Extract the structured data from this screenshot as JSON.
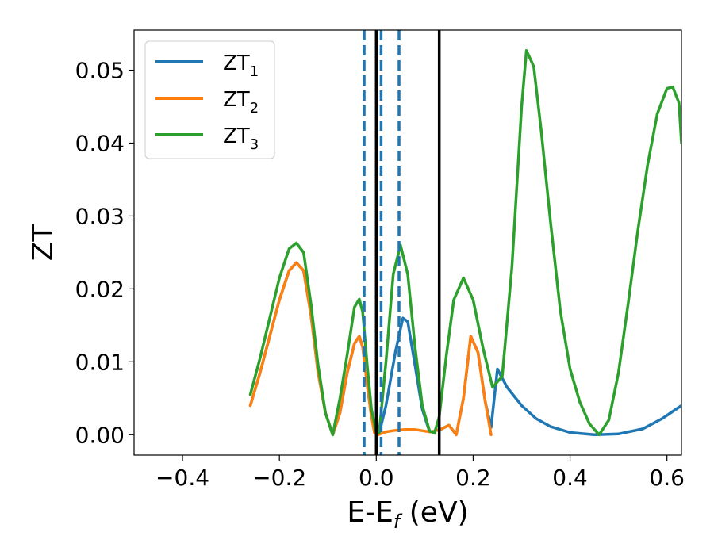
{
  "chart_data": {
    "type": "line",
    "xlabel_main": "E-E",
    "xlabel_sub": "f",
    "xlabel_unit": " (eV)",
    "ylabel": "ZT",
    "xlim": [
      -0.5,
      0.63
    ],
    "ylim": [
      -0.0028,
      0.0555
    ],
    "x_ticks": [
      -0.4,
      -0.2,
      0.0,
      0.2,
      0.4,
      0.6
    ],
    "x_tick_labels": [
      "−0.4",
      "−0.2",
      "0.0",
      "0.2",
      "0.4",
      "0.6"
    ],
    "y_ticks": [
      0.0,
      0.01,
      0.02,
      0.03,
      0.04,
      0.05
    ],
    "y_tick_labels": [
      "0.00",
      "0.01",
      "0.02",
      "0.03",
      "0.04",
      "0.05"
    ],
    "grid": false,
    "legend_position": "top-left",
    "vlines_solid": [
      0.0,
      0.13
    ],
    "vlines_dashed": [
      -0.025,
      0.01,
      0.047
    ],
    "vline_dashed_color": "#1f77b4",
    "vline_solid_color": "#000000",
    "series": [
      {
        "name": "ZT",
        "sub": "1",
        "color": "#1f77b4",
        "x": [
          -0.26,
          -0.24,
          -0.22,
          -0.2,
          -0.18,
          -0.165,
          -0.15,
          -0.135,
          -0.12,
          -0.105,
          -0.09,
          -0.075,
          -0.06,
          -0.045,
          -0.035,
          -0.028,
          -0.018,
          -0.01,
          0.0,
          0.006,
          0.02,
          0.04,
          0.055,
          0.065,
          0.08,
          0.095,
          0.11,
          0.12,
          0.135,
          0.15,
          0.165,
          0.18,
          0.195,
          0.21,
          0.225,
          0.237,
          0.25,
          0.27,
          0.3,
          0.33,
          0.36,
          0.4,
          0.45,
          0.5,
          0.55,
          0.59,
          0.63
        ],
        "y": [
          0.004,
          0.0085,
          0.0135,
          0.0185,
          0.0225,
          0.0236,
          0.0225,
          0.0165,
          0.0085,
          0.003,
          0.0,
          0.003,
          0.0085,
          0.0125,
          0.0135,
          0.012,
          0.0065,
          0.0025,
          0.0003,
          0.0002,
          0.004,
          0.0115,
          0.016,
          0.0155,
          0.0095,
          0.0035,
          0.0004,
          0.0005,
          0.0008,
          0.0013,
          0.0,
          0.005,
          0.0135,
          0.0113,
          0.0045,
          0.001,
          0.009,
          0.0065,
          0.004,
          0.0022,
          0.0011,
          0.0003,
          0.0,
          0.0001,
          0.0008,
          0.0022,
          0.004
        ]
      },
      {
        "name": "ZT",
        "sub": "2",
        "color": "#ff7f0e",
        "x": [
          -0.26,
          -0.24,
          -0.22,
          -0.2,
          -0.18,
          -0.165,
          -0.15,
          -0.135,
          -0.12,
          -0.105,
          -0.09,
          -0.075,
          -0.06,
          -0.045,
          -0.035,
          -0.028,
          -0.018,
          -0.01,
          -0.004,
          0.004,
          0.012,
          0.02,
          0.04,
          0.06,
          0.08,
          0.1,
          0.11,
          0.12,
          0.135,
          0.15,
          0.165,
          0.18,
          0.195,
          0.21,
          0.225,
          0.237
        ],
        "y": [
          0.004,
          0.0085,
          0.0135,
          0.0185,
          0.0225,
          0.0236,
          0.0225,
          0.0165,
          0.0085,
          0.003,
          0.0,
          0.003,
          0.0085,
          0.0125,
          0.0135,
          0.012,
          0.0065,
          0.0025,
          0.0003,
          0.0,
          0.0002,
          0.0004,
          0.0006,
          0.0007,
          0.0007,
          0.0005,
          0.0004,
          0.0005,
          0.0008,
          0.0013,
          0.0,
          0.005,
          0.0135,
          0.0113,
          0.0045,
          0.0
        ]
      },
      {
        "name": "ZT",
        "sub": "3",
        "color": "#2ca02c",
        "x": [
          -0.26,
          -0.24,
          -0.22,
          -0.2,
          -0.18,
          -0.165,
          -0.15,
          -0.135,
          -0.12,
          -0.105,
          -0.09,
          -0.075,
          -0.06,
          -0.045,
          -0.035,
          -0.028,
          -0.018,
          -0.01,
          0.0,
          0.006,
          0.02,
          0.035,
          0.05,
          0.065,
          0.08,
          0.095,
          0.11,
          0.12,
          0.13,
          0.145,
          0.16,
          0.18,
          0.2,
          0.22,
          0.24,
          0.26,
          0.28,
          0.3,
          0.31,
          0.325,
          0.34,
          0.36,
          0.38,
          0.4,
          0.42,
          0.44,
          0.46,
          0.48,
          0.5,
          0.52,
          0.54,
          0.56,
          0.58,
          0.6,
          0.612,
          0.625,
          0.63
        ],
        "y": [
          0.0055,
          0.0105,
          0.016,
          0.0215,
          0.0255,
          0.0263,
          0.025,
          0.018,
          0.0095,
          0.003,
          0.0,
          0.005,
          0.011,
          0.0175,
          0.0186,
          0.0168,
          0.009,
          0.0035,
          0.0003,
          0.0003,
          0.01,
          0.022,
          0.026,
          0.022,
          0.012,
          0.004,
          0.0005,
          0.0002,
          0.0025,
          0.011,
          0.0185,
          0.0215,
          0.0185,
          0.012,
          0.0065,
          0.008,
          0.023,
          0.045,
          0.0527,
          0.0505,
          0.042,
          0.029,
          0.017,
          0.009,
          0.0045,
          0.0015,
          0.0,
          0.002,
          0.0085,
          0.018,
          0.028,
          0.037,
          0.044,
          0.0475,
          0.0477,
          0.0455,
          0.04
        ]
      }
    ]
  }
}
